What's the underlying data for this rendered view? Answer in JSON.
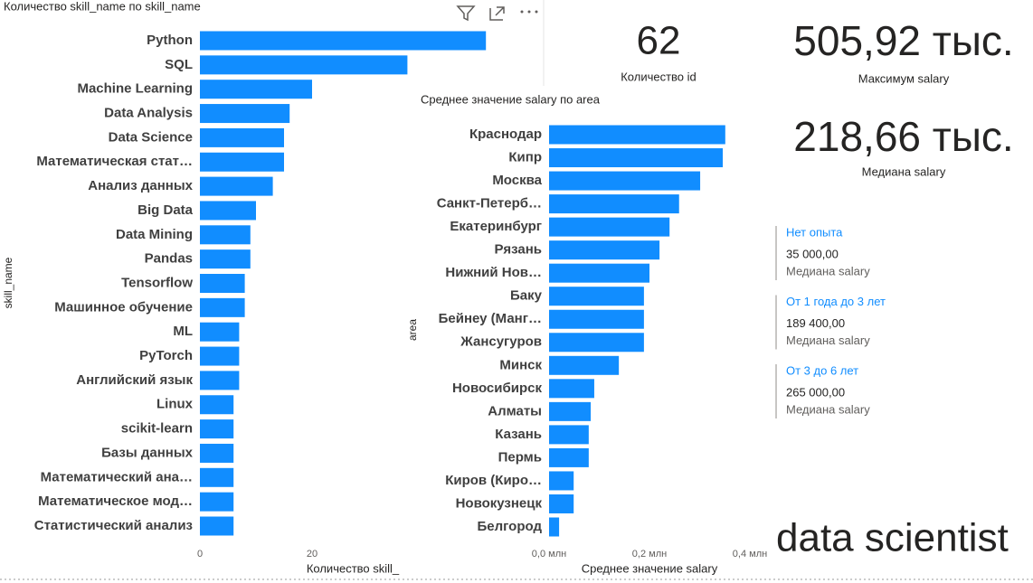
{
  "chart_data": [
    {
      "type": "hbar",
      "title": "Количество skill_name по skill_name",
      "x_label": "Количество skill_",
      "y_label": "skill_name",
      "color": "#118DFF",
      "categories": [
        "Python",
        "SQL",
        "Machine Learning",
        "Data Analysis",
        "Data Science",
        "Математическая стат…",
        "Анализ данных",
        "Big Data",
        "Data Mining",
        "Pandas",
        "Tensorflow",
        "Машинное обучение",
        "ML",
        "PyTorch",
        "Английский язык",
        "Linux",
        "scikit-learn",
        "Базы данных",
        "Математический ана…",
        "Математическое мод…",
        "Статистический анализ"
      ],
      "values": [
        51,
        37,
        20,
        16,
        15,
        15,
        13,
        10,
        9,
        9,
        8,
        8,
        7,
        7,
        7,
        6,
        6,
        6,
        6,
        6,
        6
      ],
      "xlim": [
        0,
        60
      ],
      "xticks": [
        0,
        20
      ]
    },
    {
      "type": "hbar",
      "title": "Среднее значение salary по area",
      "x_label": "Среднее значение salary",
      "y_label": "area",
      "color": "#118DFF",
      "categories": [
        "Краснодар",
        "Кипр",
        "Москва",
        "Санкт-Петерб…",
        "Екатеринбург",
        "Рязань",
        "Нижний Нов…",
        "Баку",
        "Бейнеу (Манг…",
        "Жансугуров",
        "Минск",
        "Новосибирск",
        "Алматы",
        "Казань",
        "Пермь",
        "Киров (Киро…",
        "Новокузнецк",
        "Белгород"
      ],
      "values": [
        351000,
        346000,
        301000,
        259000,
        240000,
        220000,
        200000,
        189000,
        189000,
        189000,
        139000,
        90000,
        83000,
        79000,
        79000,
        49000,
        49000,
        20000
      ],
      "xlim": [
        0,
        400000
      ],
      "xticks": [
        {
          "value": 0,
          "label": "0,0 млн"
        },
        {
          "value": 200000,
          "label": "0,2 млн"
        },
        {
          "value": 400000,
          "label": "0,4 млн"
        }
      ]
    }
  ],
  "cards": [
    {
      "value": "62",
      "label": "Количество id"
    },
    {
      "value": "505,92 тыс.",
      "label": "Максимум salary"
    },
    {
      "value": "218,66 тыс.",
      "label": "Медиана salary"
    }
  ],
  "multi_row_card": [
    {
      "title": "Нет опыта",
      "value": "35 000,00",
      "label": "Медиана salary"
    },
    {
      "title": "От 1 года до 3 лет",
      "value": "189 400,00",
      "label": "Медиана salary"
    },
    {
      "title": "От 3 до 6 лет",
      "value": "265 000,00",
      "label": "Медиана salary"
    }
  ],
  "page_label": "data scientist"
}
